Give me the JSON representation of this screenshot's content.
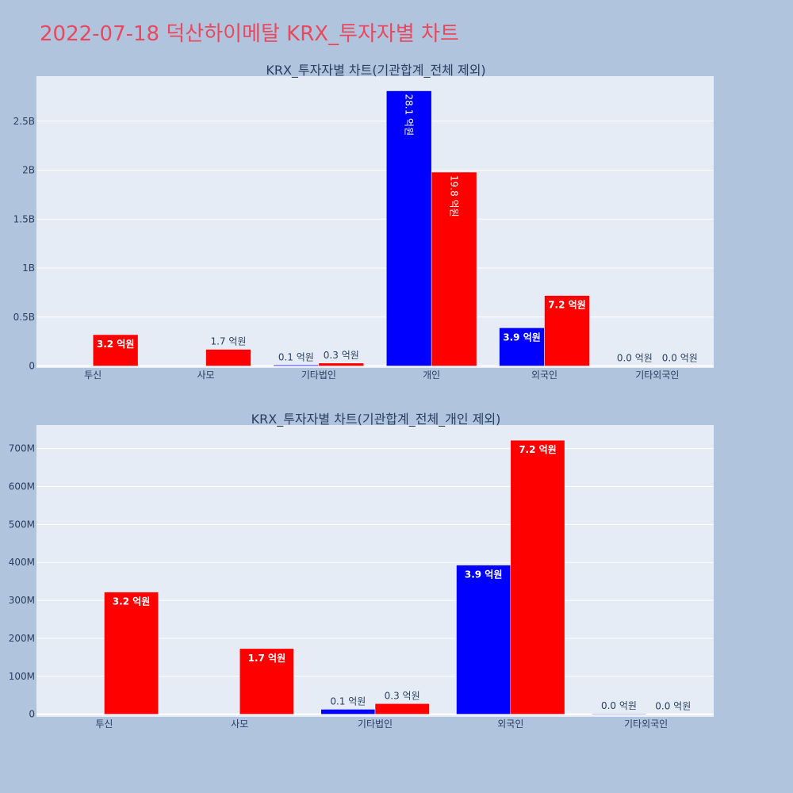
{
  "page": {
    "title": "2022-07-18 덕산하이메탈 KRX_투자자별 차트"
  },
  "colors": {
    "background": "#b0c4de",
    "plot_bg": "#e5ecf6",
    "gridline": "#ffffff",
    "title": "#e8495f",
    "text": "#2a3f5f",
    "series_a": "#0000ff",
    "series_b": "#ff0000"
  },
  "chart_data": [
    {
      "type": "bar",
      "title": "KRX_투자자별 차트(기관합계_전체 제외)",
      "categories": [
        "투신",
        "사모",
        "기타법인",
        "개인",
        "외국인",
        "기타외국인"
      ],
      "series": [
        {
          "color": "#0000ff",
          "values": [
            0,
            0,
            10000000,
            2810000000,
            390000000,
            0
          ],
          "labels": [
            "",
            "",
            "0.1 억원",
            "28.1 억원",
            "3.9 억원",
            "0.0 억원"
          ]
        },
        {
          "color": "#ff0000",
          "values": [
            320000000,
            170000000,
            30000000,
            1980000000,
            720000000,
            0
          ],
          "labels": [
            "3.2 억원",
            "1.7 억원",
            "0.3 억원",
            "19.8 억원",
            "7.2 억원",
            "0.0 억원"
          ]
        }
      ],
      "yticks": [
        0,
        500000000,
        1000000000,
        1500000000,
        2000000000,
        2500000000
      ],
      "ytick_labels": [
        "0",
        "0.5B",
        "1B",
        "1.5B",
        "2B",
        "2.5B"
      ],
      "ylim": [
        -20000000,
        2960000000
      ],
      "grid": true
    },
    {
      "type": "bar",
      "title": "KRX_투자자별 차트(기관합계_전체_개인 제외)",
      "categories": [
        "투신",
        "사모",
        "기타법인",
        "외국인",
        "기타외국인"
      ],
      "series": [
        {
          "color": "#0000ff",
          "values": [
            0,
            0,
            13000000,
            393000000,
            1500000
          ],
          "labels": [
            "",
            "",
            "0.1 억원",
            "3.9 억원",
            "0.0 억원"
          ]
        },
        {
          "color": "#ff0000",
          "values": [
            322000000,
            173000000,
            28000000,
            722000000,
            0
          ],
          "labels": [
            "3.2 억원",
            "1.7 억원",
            "0.3 억원",
            "7.2 억원",
            "0.0 억원"
          ]
        }
      ],
      "yticks": [
        0,
        100000000,
        200000000,
        300000000,
        400000000,
        500000000,
        600000000,
        700000000
      ],
      "ytick_labels": [
        "0",
        "100M",
        "200M",
        "300M",
        "400M",
        "500M",
        "600M",
        "700M"
      ],
      "ylim": [
        -7000000,
        762000000
      ],
      "grid": true
    }
  ]
}
